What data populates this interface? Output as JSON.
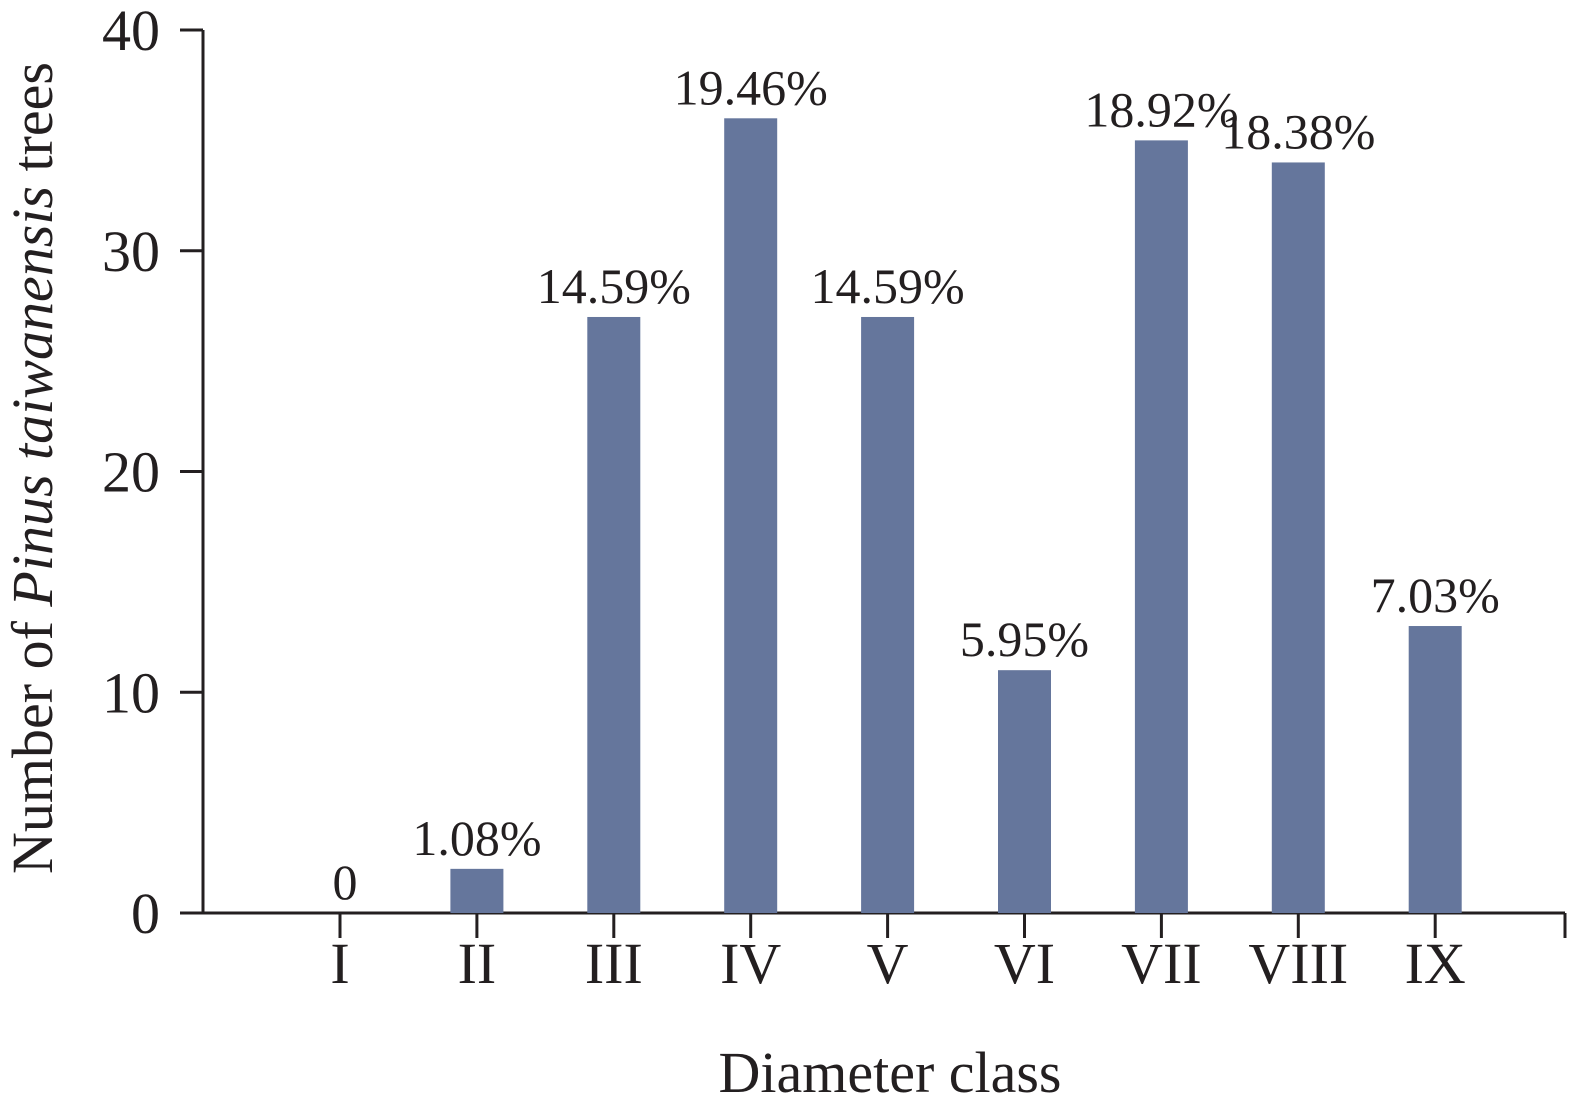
{
  "chart_data": {
    "type": "bar",
    "categories": [
      "I",
      "II",
      "III",
      "IV",
      "V",
      "VI",
      "VII",
      "VIII",
      "IX"
    ],
    "values": [
      0,
      2,
      27,
      36,
      27,
      11,
      35,
      34,
      13
    ],
    "data_labels": [
      "0",
      "1.08%",
      "14.59%",
      "19.46%",
      "14.59%",
      "5.95%",
      "18.92%",
      "18.38%",
      "7.03%"
    ],
    "xlabel": "Diameter class",
    "ylabel_parts": [
      "Number of ",
      "Pinus taiwanensis",
      " trees"
    ],
    "ylim": [
      0,
      40
    ],
    "yticks": [
      0,
      10,
      20,
      30,
      40
    ],
    "grid": false,
    "legend": "none",
    "bar_color": "#65769c",
    "axis_color": "#231f20"
  }
}
